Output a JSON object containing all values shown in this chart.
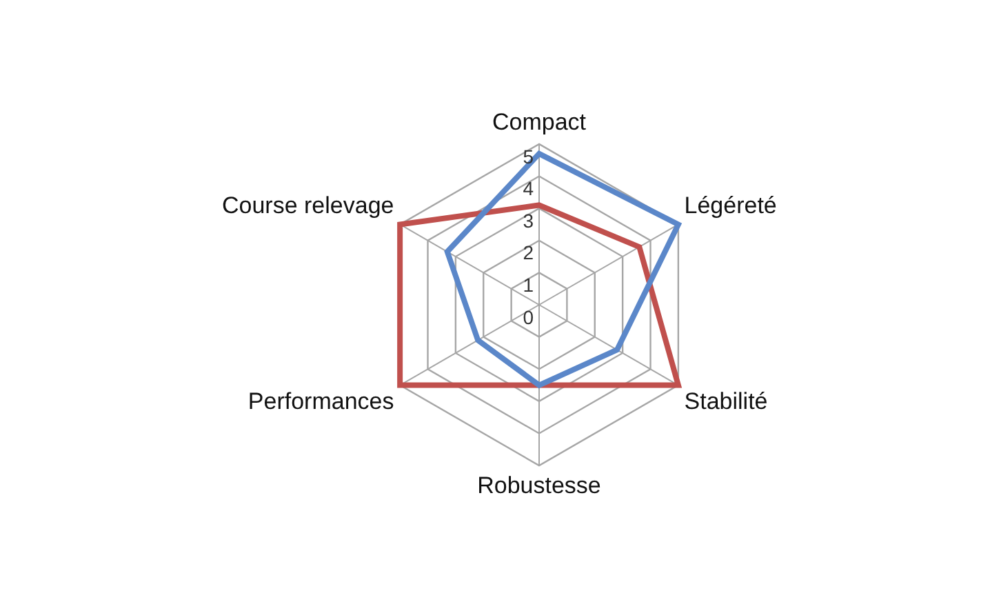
{
  "chart_data": {
    "type": "radar",
    "categories": [
      "Compact",
      "Légéreté",
      "Stabilité",
      "Robustesse",
      "Performances",
      "Course relevage"
    ],
    "series": [
      {
        "color": "#5b87c9",
        "values": [
          4.7,
          5,
          2.8,
          2.5,
          2.2,
          3.3
        ]
      },
      {
        "color": "#c0504d",
        "values": [
          3.1,
          3.6,
          5,
          2.5,
          5,
          5
        ]
      }
    ],
    "ylim": [
      0,
      5
    ],
    "yticks": [
      0,
      1,
      2,
      3,
      4,
      5
    ],
    "grid": true
  }
}
